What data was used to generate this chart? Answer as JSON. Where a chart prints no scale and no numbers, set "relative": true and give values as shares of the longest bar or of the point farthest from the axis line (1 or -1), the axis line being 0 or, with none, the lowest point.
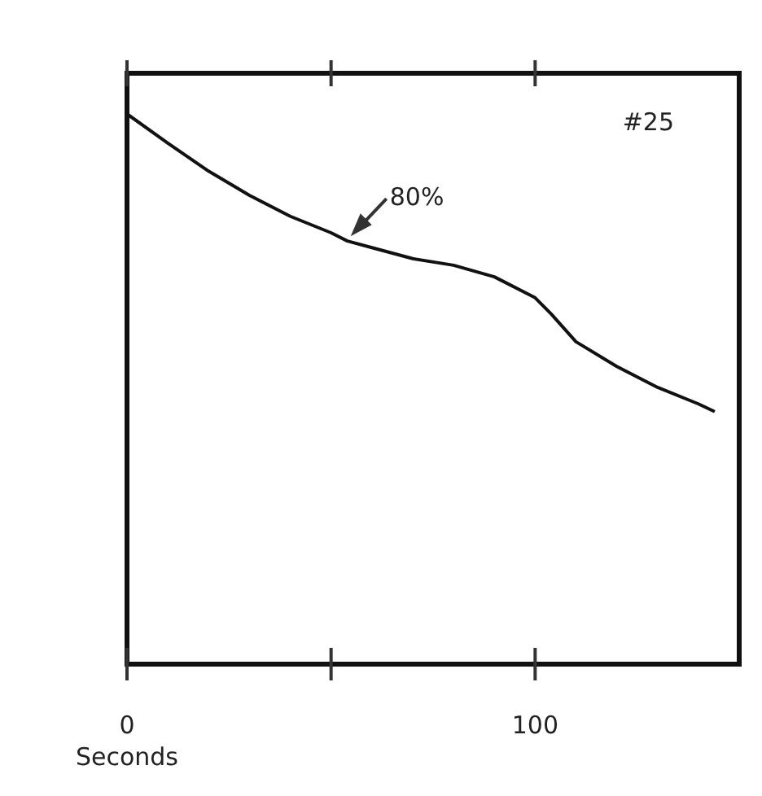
{
  "chart_data": {
    "type": "line",
    "xlabel": "Seconds",
    "relative": true,
    "x": [
      0,
      10,
      20,
      30,
      40,
      50,
      54,
      60,
      70,
      80,
      90,
      100,
      104,
      110,
      120,
      130,
      140,
      144
    ],
    "values": [
      1.0,
      0.947,
      0.896,
      0.852,
      0.814,
      0.784,
      0.769,
      0.757,
      0.737,
      0.725,
      0.704,
      0.666,
      0.636,
      0.586,
      0.541,
      0.503,
      0.473,
      0.459
    ],
    "color": "#111111",
    "xlim": [
      0,
      150
    ],
    "xticks": [
      0,
      {
        "value": 50,
        "label": null
      },
      100
    ],
    "annotations": [
      "#25",
      {
        "text": "80%",
        "x": 54,
        "y": 0.769
      }
    ]
  }
}
